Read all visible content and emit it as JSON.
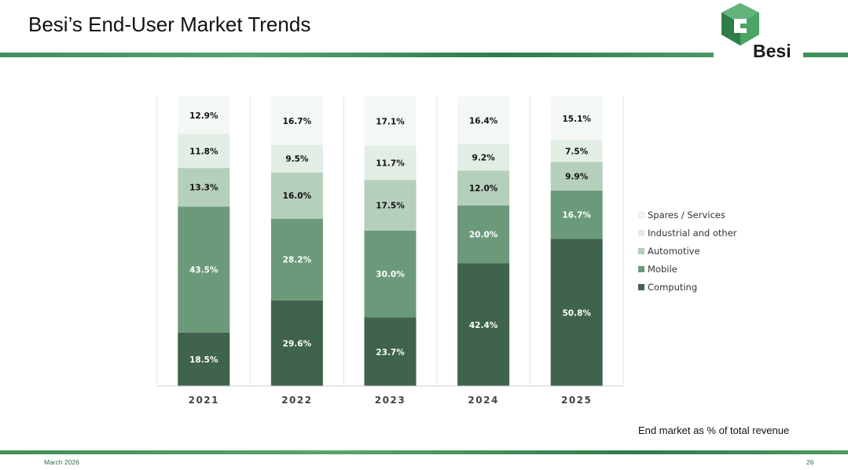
{
  "slide": {
    "title": "Besi’s End-User Market Trends",
    "logo_text": "Besi",
    "caption": "End market as % of total revenue",
    "footer_date": "March 2026",
    "page_number": "26"
  },
  "colors": {
    "brand_green": "#3f8f5a",
    "computing": "#3f634c",
    "mobile": "#6b9a7a",
    "automotive": "#b4cfbb",
    "industrial": "#e2ede4",
    "spares": "#f4f8f5"
  },
  "chart_data": {
    "type": "bar",
    "stacked": true,
    "title": "",
    "xlabel": "",
    "ylabel": "",
    "ylim": [
      0,
      100
    ],
    "categories": [
      "2021",
      "2022",
      "2023",
      "2024",
      "2025"
    ],
    "series": [
      {
        "name": "Computing",
        "values": [
          18.5,
          29.6,
          23.7,
          42.4,
          50.8
        ],
        "labels": [
          "18.5%",
          "29.6%",
          "23.7%",
          "42.4%",
          "50.8%"
        ],
        "color": "#3f634c",
        "label_color": "#ffffff"
      },
      {
        "name": "Mobile",
        "values": [
          43.5,
          28.2,
          30.0,
          20.0,
          16.7
        ],
        "labels": [
          "43.5%",
          "28.2%",
          "30.0%",
          "20.0%",
          "16.7%"
        ],
        "color": "#6b9a7a",
        "label_color": "#ffffff"
      },
      {
        "name": "Automotive",
        "values": [
          13.3,
          16.0,
          17.5,
          12.0,
          9.9
        ],
        "labels": [
          "13.3%",
          "16.0%",
          "17.5%",
          "12.0%",
          "9.9%"
        ],
        "color": "#b4cfbb",
        "label_color": "#111111"
      },
      {
        "name": "Industrial and other",
        "values": [
          11.8,
          9.5,
          11.7,
          9.2,
          7.5
        ],
        "labels": [
          "11.8%",
          "9.5%",
          "11.7%",
          "9.2%",
          "7.5%"
        ],
        "color": "#e2ede4",
        "label_color": "#111111"
      },
      {
        "name": "Spares / Services",
        "values": [
          12.9,
          16.7,
          17.1,
          16.4,
          15.1
        ],
        "labels": [
          "12.9%",
          "16.7%",
          "17.1%",
          "16.4%",
          "15.1%"
        ],
        "color": "#f4f8f5",
        "label_color": "#111111"
      }
    ],
    "legend": {
      "position": "right",
      "order": [
        "Spares / Services",
        "Industrial and other",
        "Automotive",
        "Mobile",
        "Computing"
      ]
    },
    "grid": false
  }
}
